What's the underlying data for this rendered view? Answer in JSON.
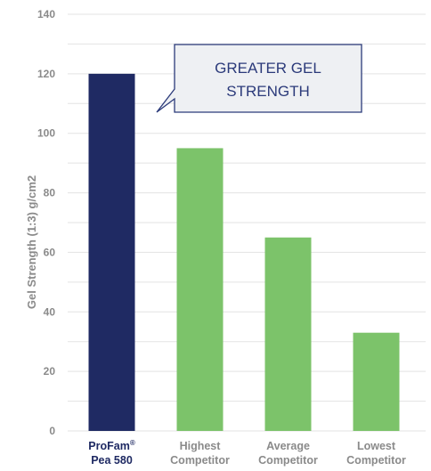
{
  "chart_data": {
    "type": "bar",
    "ylabel": "Gel Strength (1:3) g/cm2",
    "ylim": [
      0,
      140
    ],
    "yticks": [
      0,
      20,
      40,
      60,
      80,
      100,
      120,
      140
    ],
    "grid": true,
    "categories": [
      {
        "line1": "ProFam",
        "sup": "®",
        "line2": "Pea 580"
      },
      {
        "line1": "Highest",
        "line2": "Competitor"
      },
      {
        "line1": "Average",
        "line2": "Competitor"
      },
      {
        "line1": "Lowest",
        "line2": "Competitor"
      }
    ],
    "values": [
      120,
      95,
      65,
      33
    ],
    "colors": [
      "#1f2a63",
      "#7cc36a",
      "#7cc36a",
      "#7cc36a"
    ],
    "highlight_index": 0,
    "callout": {
      "line1": "GREATER GEL",
      "line2": "STRENGTH"
    }
  }
}
